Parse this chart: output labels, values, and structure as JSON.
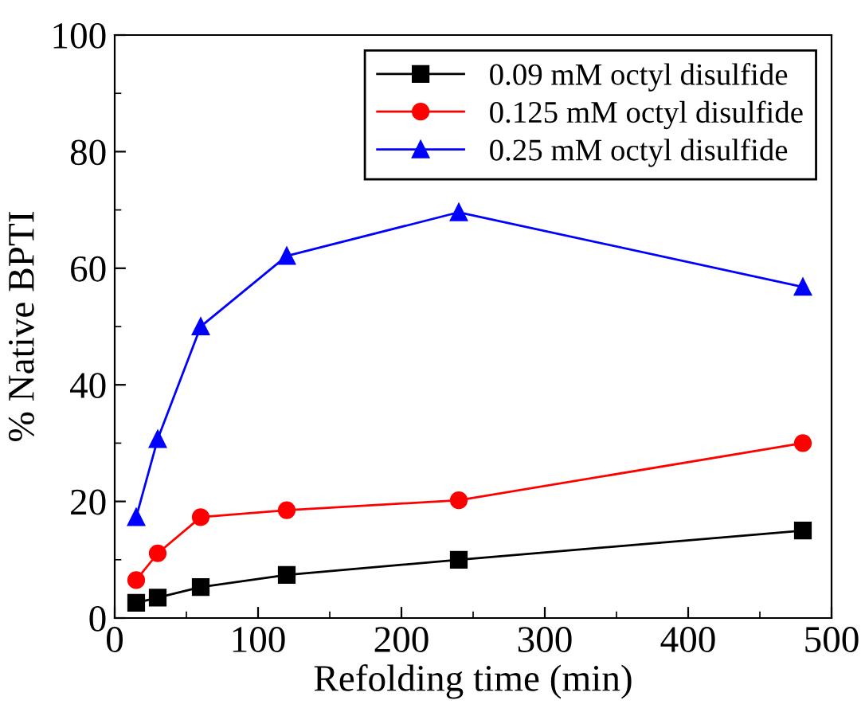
{
  "chart_data": {
    "type": "line",
    "xlabel": "Refolding time (min)",
    "ylabel": "% Native BPTI",
    "x": [
      15,
      30,
      60,
      120,
      240,
      480
    ],
    "series": [
      {
        "name": "0.09 mM octyl disulfide",
        "color": "#000000",
        "marker": "square",
        "values": [
          2.6,
          3.5,
          5.3,
          7.4,
          10.0,
          15.0
        ]
      },
      {
        "name": "0.125 mM octyl disulfide",
        "color": "#ff0000",
        "marker": "circle",
        "values": [
          6.5,
          11.1,
          17.3,
          18.5,
          20.2,
          30.0
        ]
      },
      {
        "name": "0.25 mM octyl disulfide",
        "color": "#0000ff",
        "marker": "triangle",
        "values": [
          17.3,
          30.7,
          50.0,
          62.1,
          69.6,
          56.8
        ]
      }
    ],
    "xlim": [
      0,
      500
    ],
    "xticks": [
      0,
      100,
      200,
      300,
      400,
      500
    ],
    "ylim": [
      0,
      100
    ],
    "yticks": [
      0,
      20,
      40,
      60,
      80,
      100
    ],
    "grid": false,
    "legend": "top right",
    "line_style": "solid"
  }
}
